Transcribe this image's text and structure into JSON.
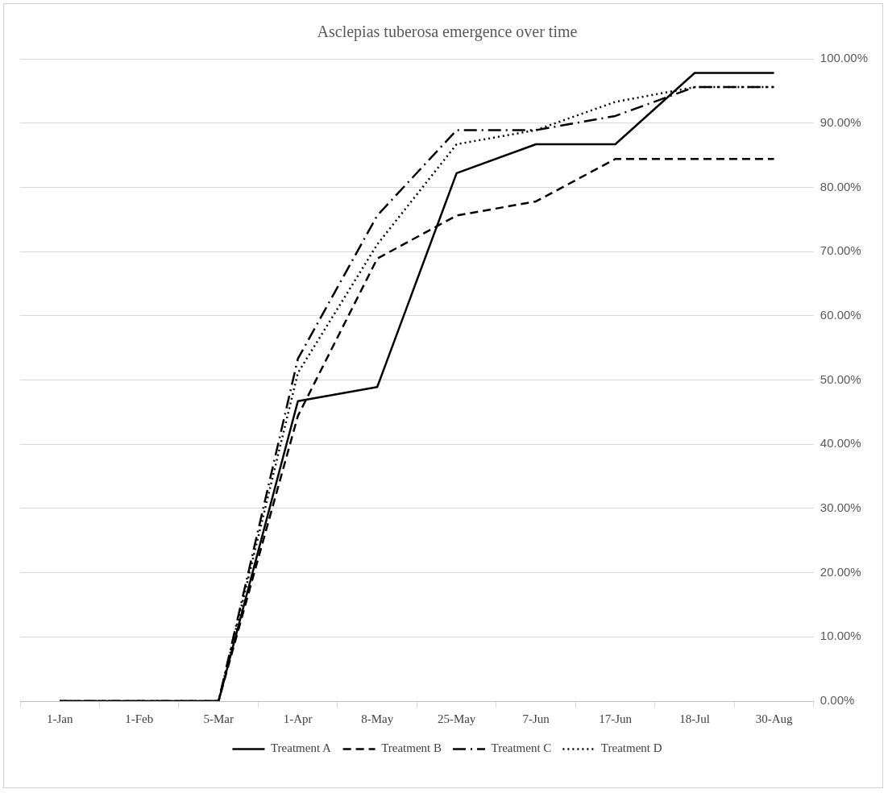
{
  "chart_data": {
    "type": "line",
    "title": "Asclepias tuberosa emergence over time",
    "categories": [
      "1-Jan",
      "1-Feb",
      "5-Mar",
      "1-Apr",
      "8-May",
      "25-May",
      "7-Jun",
      "17-Jun",
      "18-Jul",
      "30-Aug"
    ],
    "series": [
      {
        "name": "Treatment A",
        "color": "#000000",
        "line_style": "solid",
        "values": [
          0,
          0,
          0,
          46.7,
          48.9,
          82.2,
          86.7,
          86.7,
          97.8,
          97.8
        ]
      },
      {
        "name": "Treatment B",
        "color": "#000000",
        "line_style": "dashed",
        "values": [
          0,
          0,
          0,
          44.4,
          68.9,
          75.6,
          77.8,
          84.4,
          84.4,
          84.4
        ]
      },
      {
        "name": "Treatment C",
        "color": "#000000",
        "line_style": "dashdot",
        "values": [
          0,
          0,
          0,
          53.3,
          75.6,
          88.9,
          88.9,
          91.1,
          95.6,
          95.6
        ]
      },
      {
        "name": "Treatment D",
        "color": "#000000",
        "line_style": "dotted",
        "values": [
          0,
          0,
          0,
          51.1,
          71.1,
          86.7,
          88.9,
          93.3,
          95.6,
          95.6
        ]
      }
    ],
    "ylim": [
      0,
      100
    ],
    "yticks": [
      {
        "value": 0,
        "label": "0.00%"
      },
      {
        "value": 10,
        "label": "10.00%"
      },
      {
        "value": 20,
        "label": "20.00%"
      },
      {
        "value": 30,
        "label": "30.00%"
      },
      {
        "value": 40,
        "label": "40.00%"
      },
      {
        "value": 50,
        "label": "50.00%"
      },
      {
        "value": 60,
        "label": "60.00%"
      },
      {
        "value": 70,
        "label": "70.00%"
      },
      {
        "value": 80,
        "label": "80.00%"
      },
      {
        "value": 90,
        "label": "90.00%"
      },
      {
        "value": 100,
        "label": "100.00%"
      }
    ],
    "grid": "y",
    "legend": "bottom",
    "marker": "none"
  }
}
